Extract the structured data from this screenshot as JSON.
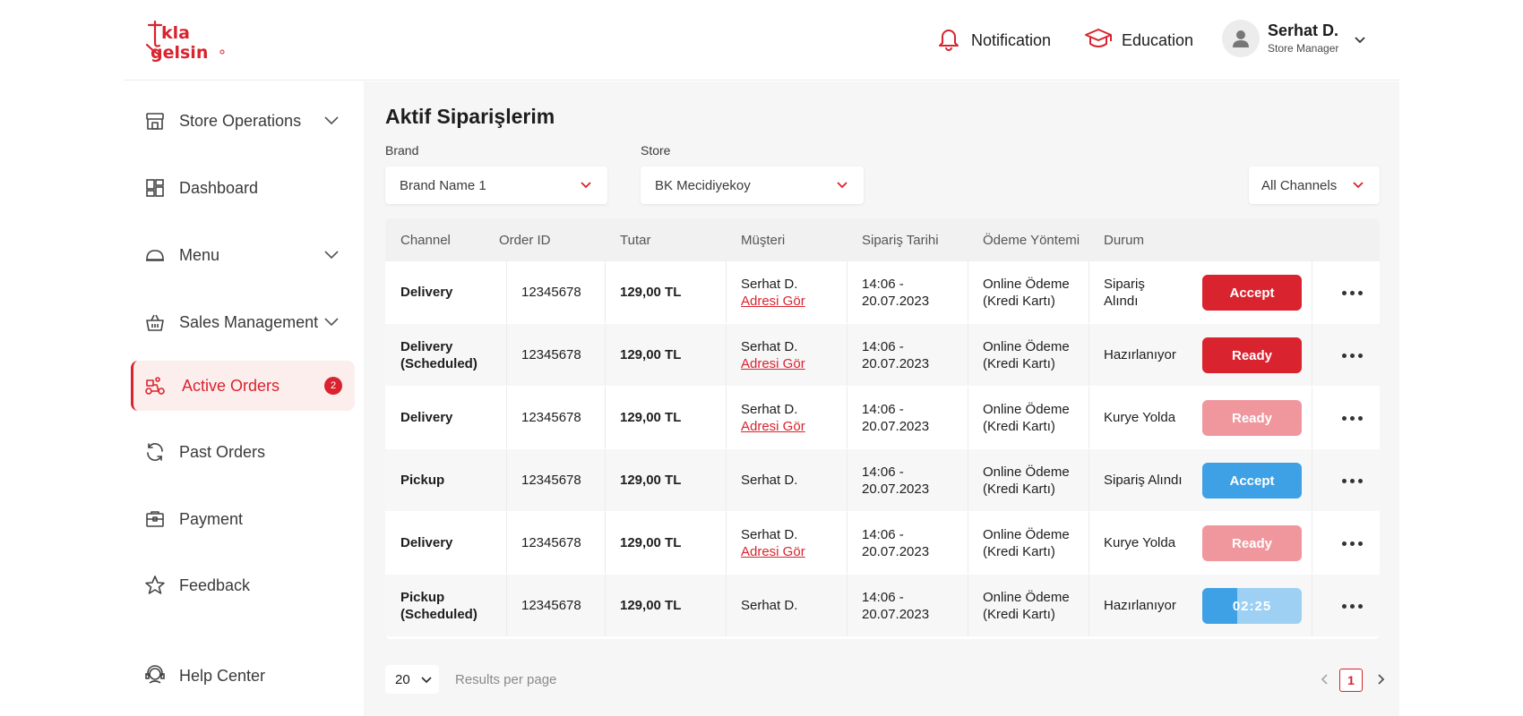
{
  "brand": {
    "logo_text_line1": "tıkla",
    "logo_text_line2": "gelsin",
    "accent": "#d9232e"
  },
  "header": {
    "notification_label": "Notification",
    "education_label": "Education",
    "user_name": "Serhat D.",
    "user_role": "Store Manager"
  },
  "sidebar": {
    "items": [
      {
        "label": "Store Operations",
        "icon": "store-icon",
        "has_chevron": true
      },
      {
        "label": "Dashboard",
        "icon": "dashboard-icon",
        "has_chevron": false
      },
      {
        "label": "Menu",
        "icon": "cloche-icon",
        "has_chevron": true
      },
      {
        "label": "Sales Management",
        "icon": "basket-icon",
        "has_chevron": true
      },
      {
        "label": "Active Orders",
        "icon": "courier-icon",
        "active": true,
        "badge": "2"
      },
      {
        "label": "Past Orders",
        "icon": "refresh-icon"
      },
      {
        "label": "Payment",
        "icon": "wallet-icon"
      },
      {
        "label": "Feedback",
        "icon": "star-icon"
      },
      {
        "label": "Help Center",
        "icon": "help-icon"
      }
    ]
  },
  "main": {
    "title": "Aktif Siparişlerim",
    "brand_label": "Brand",
    "brand_value": "Brand Name 1",
    "store_label": "Store",
    "store_value": "BK Mecidiyekoy",
    "channel_value": "All Channels"
  },
  "table": {
    "headers": [
      "Channel",
      "Order ID",
      "Tutar",
      "Müşteri",
      "Sipariş Tarihi",
      "Ödeme Yöntemi",
      "Durum"
    ],
    "rows": [
      {
        "channel": "Delivery",
        "channel2": "",
        "order_id": "12345678",
        "amount": "129,00 TL",
        "customer": "Serhat D.",
        "address_link": "Adresi Gör",
        "time": "14:06 -",
        "date": "20.07.2023",
        "pay1": "Online Ödeme",
        "pay2": "(Kredi Kartı)",
        "status": "Sipariş Alındı",
        "action": "Accept",
        "action_style": "red"
      },
      {
        "channel": "Delivery",
        "channel2": "(Scheduled)",
        "order_id": "12345678",
        "amount": "129,00 TL",
        "customer": "Serhat D.",
        "address_link": "Adresi Gör",
        "time": "14:06 -",
        "date": "20.07.2023",
        "pay1": "Online Ödeme",
        "pay2": "(Kredi Kartı)",
        "status": "Hazırlanıyor",
        "action": "Ready",
        "action_style": "red"
      },
      {
        "channel": "Delivery",
        "channel2": "",
        "order_id": "12345678",
        "amount": "129,00 TL",
        "customer": "Serhat D.",
        "address_link": "Adresi Gör",
        "time": "14:06 -",
        "date": "20.07.2023",
        "pay1": "Online Ödeme",
        "pay2": "(Kredi Kartı)",
        "status": "Kurye Yolda",
        "action": "Ready",
        "action_style": "pink"
      },
      {
        "channel": "Pickup",
        "channel2": "",
        "order_id": "12345678",
        "amount": "129,00 TL",
        "customer": "Serhat D.",
        "address_link": "",
        "time": "14:06 -",
        "date": "20.07.2023",
        "pay1": "Online Ödeme",
        "pay2": "(Kredi Kartı)",
        "status": "Sipariş Alındı",
        "action": "Accept",
        "action_style": "blue"
      },
      {
        "channel": "Delivery",
        "channel2": "",
        "order_id": "12345678",
        "amount": "129,00 TL",
        "customer": "Serhat D.",
        "address_link": "Adresi Gör",
        "time": "14:06 -",
        "date": "20.07.2023",
        "pay1": "Online Ödeme",
        "pay2": "(Kredi Kartı)",
        "status": "Kurye Yolda",
        "action": "Ready",
        "action_style": "pink"
      },
      {
        "channel": "Pickup",
        "channel2": "(Scheduled)",
        "order_id": "12345678",
        "amount": "129,00 TL",
        "customer": "Serhat D.",
        "address_link": "",
        "time": "14:06 -",
        "date": "20.07.2023",
        "pay1": "Online Ödeme",
        "pay2": "(Kredi Kartı)",
        "status": "Hazırlanıyor",
        "action": "02:25",
        "action_style": "timer",
        "timer_progress": 0.35
      }
    ]
  },
  "pagination": {
    "per_page": "20",
    "per_page_label": "Results per page",
    "current_page": "1"
  }
}
